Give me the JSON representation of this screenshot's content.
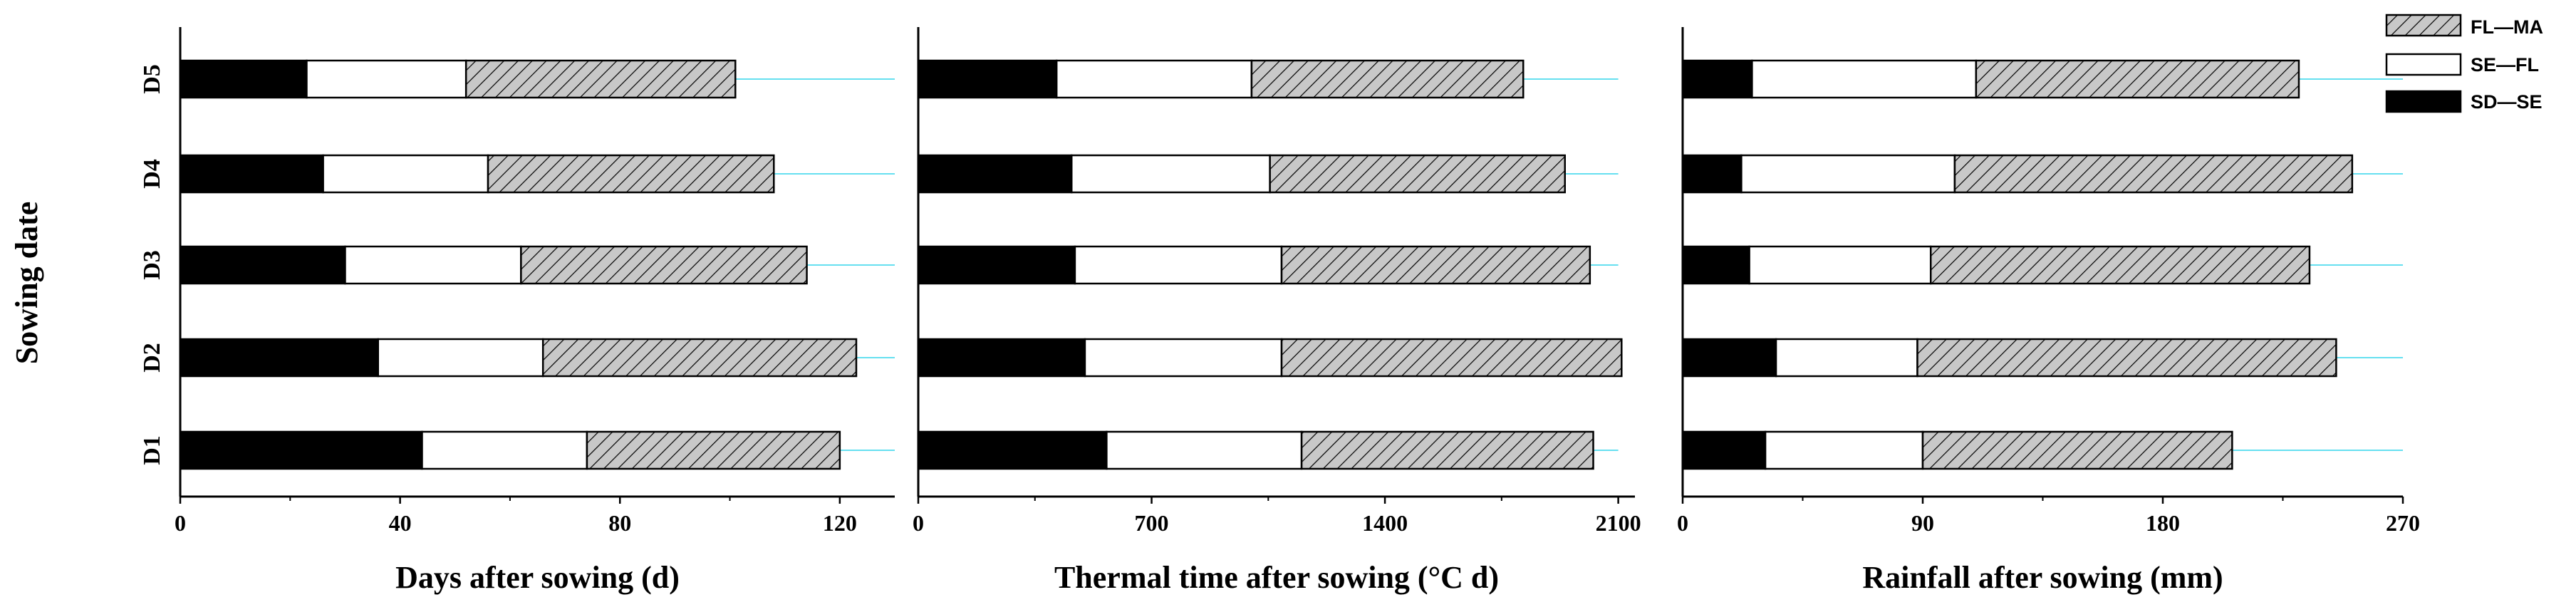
{
  "colors": {
    "sd_se": "#000000",
    "se_fl": "#ffffff",
    "fl_ma_fill": "#c8c8c8",
    "fl_ma_hatch": "#000000",
    "reference_line": "#66e0f0",
    "axis": "#000000"
  },
  "ylabel": "Sowing date",
  "legend": [
    "FL—MA",
    "SE—FL",
    "SD—SE"
  ],
  "chart_data": [
    {
      "type": "bar",
      "stacked": true,
      "orientation": "horizontal",
      "title": "",
      "xlabel": "Days after sowing (d)",
      "ylabel": "Sowing date",
      "xlim": [
        0,
        130
      ],
      "xticks": [
        0,
        40,
        80,
        120
      ],
      "xtick_labels": [
        "0",
        "40",
        "80",
        "120"
      ],
      "reference_line_end": 130,
      "categories": [
        "D1",
        "D2",
        "D3",
        "D4",
        "D5"
      ],
      "series": [
        {
          "name": "SD—SE",
          "values": [
            44,
            36,
            30,
            26,
            23
          ]
        },
        {
          "name": "SE—FL",
          "values": [
            30,
            30,
            32,
            30,
            29
          ]
        },
        {
          "name": "FL—MA",
          "values": [
            46,
            57,
            52,
            52,
            49
          ]
        }
      ]
    },
    {
      "type": "bar",
      "stacked": true,
      "orientation": "horizontal",
      "title": "",
      "xlabel": "Thermal time after sowing (°C d)",
      "ylabel": "",
      "xlim": [
        0,
        2150
      ],
      "xticks": [
        0,
        700,
        1400,
        2100
      ],
      "xtick_labels": [
        "0",
        "700",
        "1400",
        "2100"
      ],
      "reference_line_end": 2100,
      "categories": [
        "D1",
        "D2",
        "D3",
        "D4",
        "D5"
      ],
      "series": [
        {
          "name": "SD—SE",
          "values": [
            565,
            500,
            470,
            460,
            415
          ]
        },
        {
          "name": "SE—FL",
          "values": [
            585,
            590,
            620,
            595,
            585
          ]
        },
        {
          "name": "FL—MA",
          "values": [
            875,
            1020,
            925,
            885,
            815
          ]
        }
      ]
    },
    {
      "type": "bar",
      "stacked": true,
      "orientation": "horizontal",
      "title": "",
      "xlabel": "Rainfall after sowing (mm)",
      "ylabel": "",
      "xlim": [
        0,
        270
      ],
      "xticks": [
        0,
        90,
        180,
        270
      ],
      "xtick_labels": [
        "0",
        "90",
        "180",
        "270"
      ],
      "reference_line_end": 270,
      "categories": [
        "D1",
        "D2",
        "D3",
        "D4",
        "D5"
      ],
      "series": [
        {
          "name": "SD—SE",
          "values": [
            31,
            35,
            25,
            22,
            26
          ]
        },
        {
          "name": "SE—FL",
          "values": [
            59,
            53,
            68,
            80,
            84
          ]
        },
        {
          "name": "FL—MA",
          "values": [
            116,
            157,
            142,
            149,
            121
          ]
        }
      ]
    }
  ]
}
